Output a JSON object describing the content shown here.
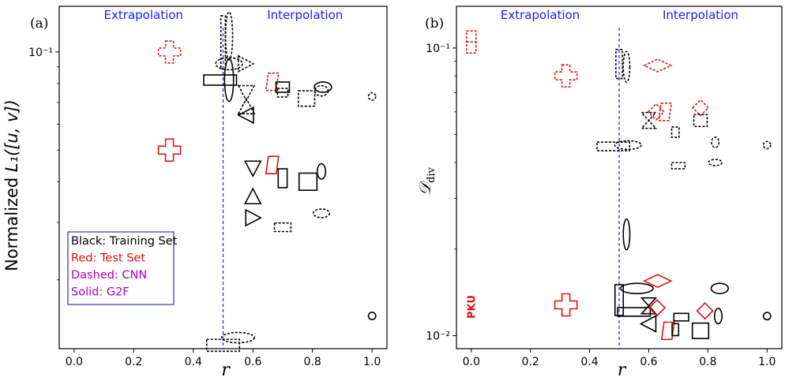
{
  "colors": {
    "training": "#000000",
    "test": "#e01010",
    "divider": "#1a1aff",
    "legend_text_method": "#b000b0",
    "legend_border": "#3030c0"
  },
  "chart_data": [
    {
      "panel_label": "(a)",
      "type": "scatter",
      "xlabel": "r",
      "ylabel": "Normalized  L₁([u, v])",
      "ylabel_main": "Normalized",
      "ylabel_math": "L₁([u, v])",
      "xlim": [
        -0.05,
        1.05
      ],
      "ylim_log10": [
        -1.91,
        -0.86
      ],
      "y_scale": "log",
      "x_ticks": [
        "0.0",
        "0.2",
        "0.4",
        "0.6",
        "0.8",
        "1.0"
      ],
      "y_tick_labels": [
        {
          "label": "10⁻¹",
          "value": 0.1
        }
      ],
      "divider_x": 0.5,
      "region_labels": {
        "left": "Extrapolation",
        "right": "Interpolation"
      },
      "legend": [
        "Black: Training Set",
        "Red: Test Set",
        "Dashed: CNN",
        "Solid: G2F"
      ],
      "markers": [
        {
          "name": "test-plus-cnn",
          "shape": "plus",
          "x": 0.32,
          "y": 0.1,
          "color": "test",
          "dashed": true
        },
        {
          "name": "test-plus-g2f",
          "shape": "plus",
          "x": 0.32,
          "y": 0.05,
          "color": "test",
          "dashed": false
        },
        {
          "name": "tall-rect-cnn",
          "shape": "rect",
          "x": 0.5,
          "y": 0.107,
          "w": 0.015,
          "h": 0.155,
          "color": "training",
          "dashed": true
        },
        {
          "name": "tall-ellipse-cnn",
          "shape": "ellipse",
          "x": 0.52,
          "y": 0.112,
          "w": 0.024,
          "h": 0.14,
          "color": "training",
          "dashed": true
        },
        {
          "name": "wide-ellipse-cnn",
          "shape": "ellipse",
          "x": 0.52,
          "y": 0.092,
          "w": 0.09,
          "h": 0.035,
          "color": "training",
          "dashed": true
        },
        {
          "name": "wide-rect-g2f",
          "shape": "rect",
          "x": 0.49,
          "y": 0.082,
          "w": 0.11,
          "h": 0.03,
          "color": "training",
          "dashed": false
        },
        {
          "name": "tall-ellipse-g2f",
          "shape": "ellipse",
          "x": 0.52,
          "y": 0.082,
          "w": 0.03,
          "h": 0.125,
          "color": "training",
          "dashed": false
        },
        {
          "name": "tri-right-cnn",
          "shape": "tri-right",
          "x": 0.575,
          "y": 0.092,
          "color": "training",
          "dashed": true
        },
        {
          "name": "tri-down-cnn",
          "shape": "tri-down",
          "x": 0.578,
          "y": 0.075,
          "color": "training",
          "dashed": true
        },
        {
          "name": "tri-up-cnn",
          "shape": "tri-up",
          "x": 0.578,
          "y": 0.068,
          "color": "training",
          "dashed": true
        },
        {
          "name": "tri-left-g2f",
          "shape": "tri-left",
          "x": 0.578,
          "y": 0.064,
          "color": "training",
          "dashed": false
        },
        {
          "name": "test-para-cnn",
          "shape": "para",
          "x": 0.665,
          "y": 0.081,
          "color": "test",
          "dashed": true
        },
        {
          "name": "rect-small-g2f",
          "shape": "rect",
          "x": 0.7,
          "y": 0.078,
          "w": 0.045,
          "h": 0.03,
          "color": "training",
          "dashed": false
        },
        {
          "name": "rect-small-cnn",
          "shape": "rect",
          "x": 0.7,
          "y": 0.075,
          "w": 0.035,
          "h": 0.025,
          "color": "training",
          "dashed": true
        },
        {
          "name": "rect-mid-cnn",
          "shape": "rect",
          "x": 0.78,
          "y": 0.072,
          "w": 0.055,
          "h": 0.045,
          "color": "training",
          "dashed": true
        },
        {
          "name": "ellipse-mid-g2f",
          "shape": "ellipse",
          "x": 0.835,
          "y": 0.078,
          "w": 0.058,
          "h": 0.03,
          "color": "training",
          "dashed": false
        },
        {
          "name": "ellipse-mid-cnn",
          "shape": "ellipse",
          "x": 0.83,
          "y": 0.076,
          "w": 0.045,
          "h": 0.03,
          "color": "training",
          "dashed": true
        },
        {
          "name": "circle-cnn",
          "shape": "circle",
          "x": 1.0,
          "y": 0.073,
          "w": 0.055,
          "h": 0.055,
          "color": "training",
          "dashed": true
        },
        {
          "name": "test-para-g2f",
          "shape": "para",
          "x": 0.665,
          "y": 0.045,
          "color": "test",
          "dashed": false
        },
        {
          "name": "tri-down-g2f",
          "shape": "tri-down",
          "x": 0.6,
          "y": 0.044,
          "color": "training",
          "dashed": false
        },
        {
          "name": "rect-tall-g2f",
          "shape": "rect",
          "x": 0.7,
          "y": 0.041,
          "w": 0.03,
          "h": 0.055,
          "color": "training",
          "dashed": false
        },
        {
          "name": "rect-large-g2f",
          "shape": "rect",
          "x": 0.785,
          "y": 0.04,
          "w": 0.06,
          "h": 0.05,
          "color": "training",
          "dashed": false
        },
        {
          "name": "ellipse-tall-g2f",
          "shape": "ellipse",
          "x": 0.83,
          "y": 0.043,
          "w": 0.028,
          "h": 0.045,
          "color": "training",
          "dashed": false
        },
        {
          "name": "tri-up-g2f",
          "shape": "tri-up",
          "x": 0.6,
          "y": 0.036,
          "color": "training",
          "dashed": false
        },
        {
          "name": "tri-right-g2f",
          "shape": "tri-right",
          "x": 0.6,
          "y": 0.031,
          "color": "training",
          "dashed": false
        },
        {
          "name": "rect-flat-cnn",
          "shape": "rect",
          "x": 0.7,
          "y": 0.029,
          "w": 0.055,
          "h": 0.025,
          "color": "training",
          "dashed": true
        },
        {
          "name": "ellipse-flat-cnn",
          "shape": "ellipse",
          "x": 0.83,
          "y": 0.032,
          "w": 0.055,
          "h": 0.025,
          "color": "training",
          "dashed": true
        },
        {
          "name": "circle-g2f",
          "shape": "circle",
          "x": 1.0,
          "y": 0.0155,
          "w": 0.055,
          "h": 0.055,
          "color": "training",
          "dashed": false
        },
        {
          "name": "ellipse-bottom-cnn",
          "shape": "ellipse",
          "x": 0.55,
          "y": 0.0133,
          "w": 0.11,
          "h": 0.03,
          "color": "training",
          "dashed": true
        },
        {
          "name": "rect-bottom-cnn",
          "shape": "rect",
          "x": 0.5,
          "y": 0.0126,
          "w": 0.11,
          "h": 0.035,
          "color": "training",
          "dashed": true
        }
      ]
    },
    {
      "panel_label": "(b)",
      "type": "scatter",
      "xlabel": "r",
      "ylabel": "𝒟_div",
      "ylabel_main": "𝒟",
      "ylabel_sub": "div",
      "xlim": [
        -0.05,
        1.05
      ],
      "ylim_log10": [
        -2.045,
        -0.855
      ],
      "y_scale": "log",
      "x_ticks": [
        "0.0",
        "0.2",
        "0.4",
        "0.6",
        "0.8",
        "1.0"
      ],
      "y_tick_labels": [
        {
          "label": "10⁻¹",
          "value": 0.1
        },
        {
          "label": "10⁻²",
          "value": 0.01
        }
      ],
      "divider_x": 0.5,
      "region_labels": {
        "left": "Extrapolation",
        "right": "Interpolation"
      },
      "annotations": [
        {
          "name": "pku-label",
          "text": "PKU",
          "x": 0.0,
          "y": 0.013
        }
      ],
      "markers": [
        {
          "name": "test-pku-cnn",
          "shape": "pku-dash",
          "x": 0.0,
          "y": 0.105,
          "color": "test",
          "dashed": true
        },
        {
          "name": "test-plus-cnn",
          "shape": "plus",
          "x": 0.32,
          "y": 0.08,
          "color": "test",
          "dashed": true
        },
        {
          "name": "test-plus-g2f",
          "shape": "plus",
          "x": 0.32,
          "y": 0.0128,
          "color": "test",
          "dashed": false
        },
        {
          "name": "rect-tall-cnn",
          "shape": "rect",
          "x": 0.5,
          "y": 0.088,
          "w": 0.022,
          "h": 0.085,
          "color": "training",
          "dashed": true
        },
        {
          "name": "ellipse-tall-cnn",
          "shape": "ellipse",
          "x": 0.525,
          "y": 0.086,
          "w": 0.022,
          "h": 0.09,
          "color": "training",
          "dashed": true
        },
        {
          "name": "test-diamond-cnn",
          "shape": "diamond",
          "x": 0.63,
          "y": 0.087,
          "color": "test",
          "dashed": true
        },
        {
          "name": "wide-rect-cnn",
          "shape": "rect",
          "x": 0.48,
          "y": 0.0455,
          "w": 0.11,
          "h": 0.025,
          "color": "training",
          "dashed": true
        },
        {
          "name": "wide-ellipse-cnn",
          "shape": "ellipse",
          "x": 0.53,
          "y": 0.046,
          "w": 0.09,
          "h": 0.025,
          "color": "training",
          "dashed": true
        },
        {
          "name": "hourglass-cnn",
          "shape": "hourglass",
          "x": 0.6,
          "y": 0.056,
          "color": "training",
          "dashed": true
        },
        {
          "name": "test-diamond-small-cnn",
          "shape": "diamond-small",
          "x": 0.625,
          "y": 0.06,
          "color": "test",
          "dashed": true
        },
        {
          "name": "test-para-cnn",
          "shape": "para",
          "x": 0.655,
          "y": 0.06,
          "color": "test",
          "dashed": true
        },
        {
          "name": "rect-small-cnn",
          "shape": "rect",
          "x": 0.69,
          "y": 0.051,
          "w": 0.025,
          "h": 0.03,
          "color": "training",
          "dashed": true
        },
        {
          "name": "test-diamond-cnn-2",
          "shape": "diamond-small",
          "x": 0.775,
          "y": 0.062,
          "color": "test",
          "dashed": true
        },
        {
          "name": "rect-mid-cnn",
          "shape": "rect",
          "x": 0.775,
          "y": 0.056,
          "w": 0.045,
          "h": 0.035,
          "color": "training",
          "dashed": true
        },
        {
          "name": "ellipse-small-cnn",
          "shape": "ellipse",
          "x": 0.825,
          "y": 0.047,
          "w": 0.025,
          "h": 0.03,
          "color": "training",
          "dashed": true
        },
        {
          "name": "circle-cnn",
          "shape": "circle",
          "x": 1.0,
          "y": 0.046,
          "w": 0.055,
          "h": 0.055,
          "color": "training",
          "dashed": true
        },
        {
          "name": "rect-flat-cnn",
          "shape": "rect",
          "x": 0.7,
          "y": 0.039,
          "w": 0.045,
          "h": 0.018,
          "color": "training",
          "dashed": true
        },
        {
          "name": "ellipse-flat-cnn",
          "shape": "ellipse",
          "x": 0.825,
          "y": 0.04,
          "w": 0.045,
          "h": 0.018,
          "color": "training",
          "dashed": true
        },
        {
          "name": "ellipse-tall-g2f",
          "shape": "ellipse",
          "x": 0.525,
          "y": 0.0225,
          "w": 0.022,
          "h": 0.09,
          "color": "training",
          "dashed": false
        },
        {
          "name": "test-diamond-g2f",
          "shape": "diamond",
          "x": 0.63,
          "y": 0.0155,
          "color": "test",
          "dashed": false
        },
        {
          "name": "ellipse-wide-g2f",
          "shape": "ellipse",
          "x": 0.56,
          "y": 0.0146,
          "w": 0.11,
          "h": 0.03,
          "color": "training",
          "dashed": false
        },
        {
          "name": "rect-tall-g2f",
          "shape": "rect",
          "x": 0.5,
          "y": 0.0133,
          "w": 0.028,
          "h": 0.09,
          "color": "training",
          "dashed": false
        },
        {
          "name": "rect-wide-g2f",
          "shape": "rect",
          "x": 0.55,
          "y": 0.0121,
          "w": 0.11,
          "h": 0.025,
          "color": "training",
          "dashed": false
        },
        {
          "name": "hourglass-g2f",
          "shape": "hourglass",
          "x": 0.6,
          "y": 0.0127,
          "color": "training",
          "dashed": false
        },
        {
          "name": "test-diamond-small-g2f",
          "shape": "diamond-small",
          "x": 0.628,
          "y": 0.0125,
          "color": "test",
          "dashed": false
        },
        {
          "name": "tri-left-g2f",
          "shape": "tri-left",
          "x": 0.6,
          "y": 0.011,
          "color": "training",
          "dashed": false
        },
        {
          "name": "test-para-g2f",
          "shape": "para",
          "x": 0.665,
          "y": 0.0104,
          "color": "test",
          "dashed": false
        },
        {
          "name": "rect-small-g2f",
          "shape": "rect",
          "x": 0.71,
          "y": 0.0116,
          "w": 0.05,
          "h": 0.022,
          "color": "training",
          "dashed": false
        },
        {
          "name": "rect-small-g2f-2",
          "shape": "rect",
          "x": 0.69,
          "y": 0.0105,
          "w": 0.022,
          "h": 0.035,
          "color": "training",
          "dashed": false
        },
        {
          "name": "rect-mid-g2f",
          "shape": "rect",
          "x": 0.775,
          "y": 0.0104,
          "w": 0.055,
          "h": 0.045,
          "color": "training",
          "dashed": false
        },
        {
          "name": "test-diamond-g2f-2",
          "shape": "diamond-small",
          "x": 0.79,
          "y": 0.0122,
          "color": "test",
          "dashed": false
        },
        {
          "name": "ellipse-tall-g2f-2",
          "shape": "ellipse",
          "x": 0.835,
          "y": 0.0117,
          "w": 0.025,
          "h": 0.045,
          "color": "training",
          "dashed": false
        },
        {
          "name": "ellipse-wide-g2f-2",
          "shape": "ellipse",
          "x": 0.84,
          "y": 0.0146,
          "w": 0.058,
          "h": 0.03,
          "color": "training",
          "dashed": false
        },
        {
          "name": "circle-g2f",
          "shape": "circle",
          "x": 1.0,
          "y": 0.0117,
          "w": 0.055,
          "h": 0.055,
          "color": "training",
          "dashed": false
        }
      ]
    }
  ]
}
